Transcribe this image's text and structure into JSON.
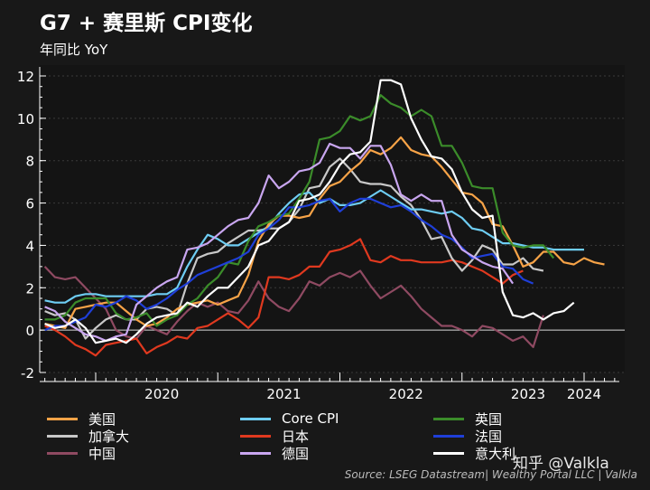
{
  "header": {
    "title": "G7 + 赛里斯 CPI变化",
    "subtitle": "年同比 YoY"
  },
  "source": "Source: LSEG Datastream| Wealthy Portal LLC | Valkla",
  "watermark": "知乎 @Valkla",
  "chart_data": {
    "type": "line",
    "title": "G7 + 赛里斯 CPI变化",
    "subtitle": "年同比 YoY",
    "x_ticks": [
      "2020",
      "2021",
      "2022",
      "2023",
      "2024"
    ],
    "y_ticks": [
      "12",
      "10",
      "8",
      "6",
      "4",
      "2",
      "0",
      "-2"
    ],
    "ylim": [
      -2,
      12
    ],
    "x_start": "2019-08",
    "x_end": "2024-02",
    "legend_position": "bottom",
    "grid": true,
    "series": [
      {
        "name": "美国",
        "color": "#f7a347",
        "values": [
          0.3,
          0.2,
          0.1,
          1.0,
          1.1,
          1.2,
          1.3,
          1.3,
          0.9,
          0.5,
          0.2,
          0.3,
          0.6,
          1.0,
          1.2,
          1.3,
          1.4,
          1.2,
          1.4,
          1.6,
          2.6,
          4.2,
          5.0,
          5.4,
          5.4,
          5.3,
          5.4,
          6.2,
          6.8,
          7.0,
          7.5,
          7.9,
          8.5,
          8.3,
          8.6,
          9.1,
          8.5,
          8.3,
          8.2,
          7.7,
          7.1,
          6.5,
          6.4,
          6.0,
          5.0,
          4.9,
          4.0,
          3.0,
          3.2,
          3.7,
          3.7,
          3.2,
          3.1,
          3.4,
          3.2,
          3.1
        ]
      },
      {
        "name": "Core CPI",
        "color": "#6ecdf3",
        "values": [
          1.4,
          1.3,
          1.3,
          1.6,
          1.7,
          1.7,
          1.6,
          1.6,
          1.6,
          1.6,
          1.6,
          1.7,
          1.7,
          2.0,
          3.0,
          3.8,
          4.5,
          4.3,
          4.0,
          4.0,
          4.3,
          4.6,
          4.9,
          5.5,
          6.0,
          6.4,
          6.5,
          6.0,
          6.2,
          5.9,
          5.9,
          6.0,
          6.3,
          6.6,
          6.3,
          6.0,
          5.7,
          5.7,
          5.6,
          5.5,
          5.6,
          5.3,
          4.8,
          4.7,
          4.4,
          4.1,
          4.1,
          4.0,
          3.9,
          3.9,
          3.8,
          3.8,
          3.8,
          3.8
        ]
      },
      {
        "name": "英国",
        "color": "#3b8c2a",
        "values": [
          0.5,
          0.5,
          0.7,
          1.3,
          1.5,
          1.5,
          1.5,
          0.8,
          0.5,
          0.6,
          0.8,
          0.2,
          0.5,
          0.7,
          1.2,
          1.5,
          2.1,
          2.5,
          3.2,
          3.1,
          4.2,
          4.9,
          5.1,
          5.4,
          5.5,
          6.2,
          7.0,
          9.0,
          9.1,
          9.4,
          10.1,
          9.9,
          10.1,
          11.1,
          10.7,
          10.5,
          10.1,
          10.4,
          10.1,
          8.7,
          8.7,
          7.9,
          6.8,
          6.7,
          6.7,
          4.6,
          4.0,
          3.9,
          4.0,
          4.0,
          3.4
        ]
      },
      {
        "name": "加拿大",
        "color": "#c8c8c8",
        "values": [
          0.9,
          0.7,
          0.8,
          0.5,
          -0.4,
          0.1,
          0.5,
          0.7,
          0.5,
          0.5,
          1.0,
          1.1,
          1.0,
          0.7,
          2.2,
          3.4,
          3.6,
          3.7,
          4.1,
          4.4,
          4.7,
          4.7,
          4.8,
          4.8,
          5.1,
          5.7,
          6.7,
          6.8,
          7.7,
          8.1,
          7.6,
          7.0,
          6.9,
          6.9,
          6.8,
          6.3,
          5.9,
          5.2,
          4.3,
          4.4,
          3.4,
          2.8,
          3.3,
          4.0,
          3.8,
          3.1,
          3.1,
          3.4,
          2.9,
          2.8
        ]
      },
      {
        "name": "日本",
        "color": "#e0391f",
        "values": [
          0.2,
          0.0,
          -0.3,
          -0.7,
          -0.9,
          -1.2,
          -0.7,
          -0.6,
          -0.5,
          -0.4,
          -1.1,
          -0.8,
          -0.6,
          -0.3,
          -0.4,
          0.1,
          0.2,
          0.5,
          0.8,
          0.5,
          0.1,
          0.6,
          2.5,
          2.5,
          2.4,
          2.6,
          3.0,
          3.0,
          3.7,
          3.8,
          4.0,
          4.3,
          3.3,
          3.2,
          3.5,
          3.3,
          3.3,
          3.2,
          3.2,
          3.2,
          3.3,
          3.2,
          3.0,
          2.8,
          2.5,
          2.2,
          2.6,
          2.8
        ]
      },
      {
        "name": "法国",
        "color": "#1f3fd8",
        "values": [
          0.0,
          0.2,
          0.2,
          0.4,
          0.6,
          1.2,
          1.1,
          1.3,
          1.6,
          1.4,
          1.0,
          1.2,
          1.5,
          1.9,
          2.2,
          2.6,
          2.8,
          3.0,
          3.2,
          3.4,
          3.7,
          4.5,
          4.8,
          5.2,
          5.8,
          5.8,
          5.9,
          6.1,
          6.2,
          5.6,
          6.0,
          6.2,
          6.2,
          6.0,
          5.8,
          5.9,
          5.6,
          5.2,
          4.9,
          4.5,
          4.3,
          3.9,
          3.4,
          3.5,
          3.6,
          3.0,
          2.9,
          2.4,
          2.2
        ]
      },
      {
        "name": "中国",
        "color": "#8f4a62",
        "values": [
          3.0,
          2.5,
          2.4,
          2.5,
          2.0,
          1.5,
          1.0,
          0.0,
          -0.3,
          -0.4,
          0.2,
          0.0,
          -0.2,
          0.4,
          0.9,
          1.3,
          1.1,
          1.3,
          0.9,
          0.8,
          1.4,
          2.3,
          1.5,
          1.1,
          0.9,
          1.5,
          2.3,
          2.1,
          2.5,
          2.7,
          2.5,
          2.8,
          2.1,
          1.5,
          1.8,
          2.1,
          1.6,
          1.0,
          0.6,
          0.2,
          0.2,
          0.0,
          -0.3,
          0.2,
          0.1,
          -0.2,
          -0.5,
          -0.3,
          -0.8,
          0.7
        ]
      },
      {
        "name": "德国",
        "color": "#c9a6f0",
        "values": [
          1.1,
          0.9,
          0.4,
          0.1,
          -0.2,
          -0.3,
          -0.5,
          -0.3,
          -0.2,
          1.2,
          1.6,
          2.0,
          2.3,
          2.5,
          3.8,
          3.9,
          4.1,
          4.5,
          4.9,
          5.2,
          5.3,
          6.0,
          7.3,
          6.7,
          7.0,
          7.5,
          7.6,
          7.9,
          8.8,
          8.6,
          8.6,
          8.1,
          8.7,
          8.7,
          7.8,
          6.4,
          6.1,
          6.4,
          6.1,
          6.1,
          4.5,
          3.8,
          3.5,
          3.2,
          3.0,
          2.9,
          2.2
        ]
      },
      {
        "name": "意大利",
        "color": "#ffffff",
        "values": [
          0.3,
          0.1,
          0.2,
          0.5,
          0.1,
          -0.6,
          -0.5,
          -0.4,
          -0.6,
          -0.2,
          0.3,
          0.6,
          0.7,
          0.8,
          1.3,
          1.1,
          1.6,
          2.0,
          2.0,
          2.5,
          3.0,
          4.0,
          4.2,
          4.8,
          5.1,
          6.1,
          6.2,
          6.4,
          7.0,
          7.8,
          8.3,
          8.4,
          8.9,
          11.8,
          11.8,
          11.6,
          10.0,
          9.0,
          8.2,
          8.1,
          7.6,
          6.5,
          5.7,
          5.3,
          5.4,
          1.8,
          0.7,
          0.6,
          0.8,
          0.5,
          0.8,
          0.9,
          1.3
        ]
      }
    ]
  }
}
